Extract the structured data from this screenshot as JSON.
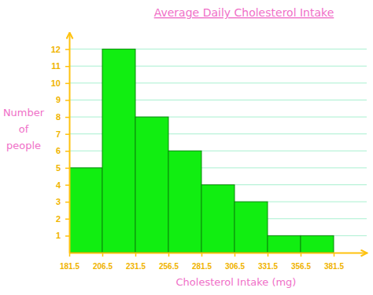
{
  "chart_data": {
    "type": "histogram",
    "title": "Average Daily Cholesterol Intake",
    "x_label": "Cholesterol Intake (mg)",
    "y_label": "Number of people",
    "bins": [
      181.5,
      206.5,
      231.5,
      256.5,
      281.5,
      306.5,
      331.5,
      356.5,
      381.5
    ],
    "values": [
      5,
      12,
      8,
      6,
      4,
      3,
      1,
      1
    ],
    "color": "#11ee11",
    "xlim": [
      181.5,
      406.5
    ],
    "xticks": [
      181.5,
      206.5,
      231.5,
      256.5,
      281.5,
      306.5,
      331.5,
      356.5,
      381.5
    ],
    "ylim": [
      0,
      13
    ],
    "yticks": [
      1,
      2,
      3,
      4,
      5,
      6,
      7,
      8,
      9,
      10,
      11,
      12
    ],
    "grid": true
  }
}
